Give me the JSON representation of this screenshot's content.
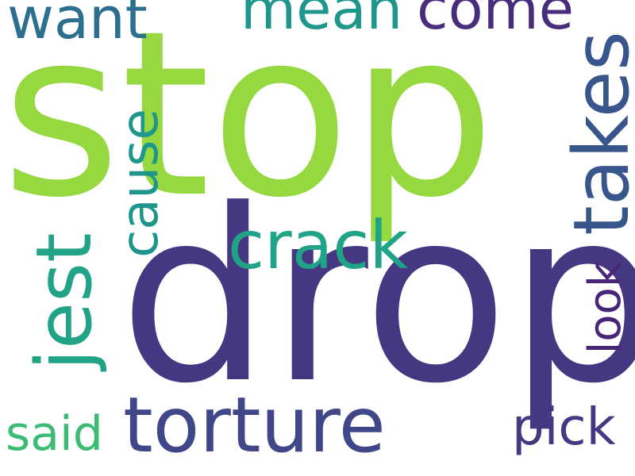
{
  "words": {
    "stop": {
      "text": "stop",
      "color": "#95d840"
    },
    "drop": {
      "text": "drop",
      "color": "#453781"
    },
    "torture": {
      "text": "torture",
      "color": "#3f4788"
    },
    "takes": {
      "text": "takes",
      "color": "#39568c"
    },
    "crack": {
      "text": "crack",
      "color": "#20a386"
    },
    "jest": {
      "text": "jest",
      "color": "#20a386"
    },
    "cause": {
      "text": "cause",
      "color": "#1f968b"
    },
    "want": {
      "text": "want",
      "color": "#2d6f8e"
    },
    "mean": {
      "text": "mean",
      "color": "#1f968b"
    },
    "come": {
      "text": "come",
      "color": "#472d7b"
    },
    "look": {
      "text": "look",
      "color": "#482677"
    },
    "said": {
      "text": "said",
      "color": "#3cbb75"
    },
    "pick": {
      "text": "pick",
      "color": "#453781"
    }
  }
}
